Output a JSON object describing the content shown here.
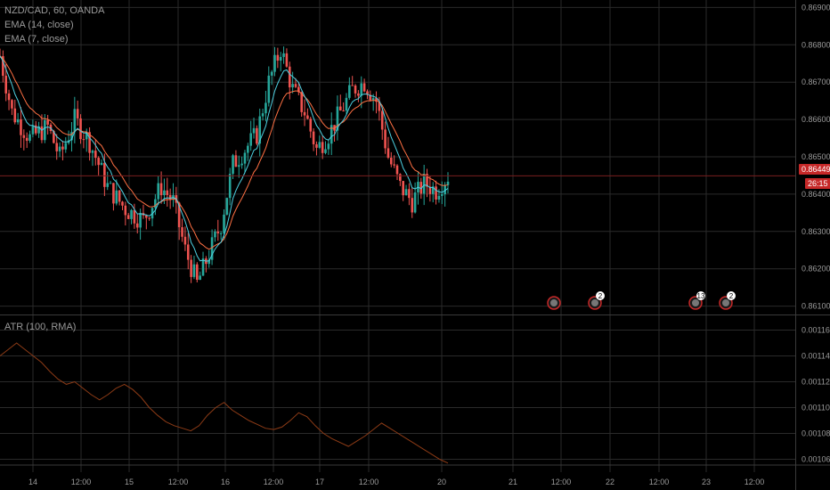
{
  "legend": {
    "symbol": "NZD/CAD, 60, OANDA",
    "ema14": "EMA (14, close)",
    "ema7": "EMA (7, close)",
    "atr": "ATR (100, RMA)"
  },
  "price_badge": "0.86449",
  "countdown_badge": "26:15",
  "events": [
    {
      "x_label": "21 12:00",
      "count": ""
    },
    {
      "x_label": "22",
      "count": "2"
    },
    {
      "x_label": "23",
      "count": "13"
    },
    {
      "x_label": "23",
      "count": "2"
    }
  ],
  "colors": {
    "up": "#26a69a",
    "down": "#ef5350",
    "ema14": "#ff7043",
    "ema7": "#4dd0e1",
    "atr": "#8d3b16",
    "grid": "#2a2a2a",
    "price_line": "#7a1e1e"
  },
  "chart_data": [
    {
      "type": "candlestick",
      "title": "NZD/CAD, 60, OANDA",
      "y_ticks": [
        "0.86900",
        "0.86800",
        "0.86700",
        "0.86600",
        "0.86500",
        "0.86400",
        "0.86300",
        "0.86200",
        "0.86100"
      ],
      "ylim": [
        0.8608,
        0.8692
      ],
      "x_tick_labels": [
        "14",
        "12:00",
        "15",
        "12:00",
        "16",
        "12:00",
        "17",
        "12:00",
        "20",
        "21",
        "12:00",
        "22",
        "12:00",
        "23",
        "12:00"
      ],
      "last_price": 0.86449,
      "series_names": [
        "EMA (14, close)",
        "EMA (7, close)"
      ]
    },
    {
      "type": "line",
      "title": "ATR (100, RMA)",
      "y_ticks": [
        "0.00116",
        "0.00114",
        "0.00112",
        "0.00110",
        "0.00108",
        "0.00106"
      ],
      "ylim": [
        0.00105,
        0.00117
      ],
      "values": [
        0.00114,
        0.001145,
        0.00115,
        0.001145,
        0.00114,
        0.001135,
        0.001128,
        0.001122,
        0.001118,
        0.00112,
        0.001115,
        0.00111,
        0.001106,
        0.00111,
        0.001115,
        0.001118,
        0.001114,
        0.001108,
        0.0011,
        0.001094,
        0.001089,
        0.001086,
        0.001084,
        0.001082,
        0.001086,
        0.001094,
        0.0011,
        0.001104,
        0.001098,
        0.001094,
        0.00109,
        0.001087,
        0.001084,
        0.001083,
        0.001085,
        0.00109,
        0.001096,
        0.001093,
        0.001086,
        0.00108,
        0.001076,
        0.001073,
        0.00107,
        0.001074,
        0.001078,
        0.001083,
        0.001088,
        0.001084,
        0.00108,
        0.001076,
        0.001072,
        0.001068,
        0.001064,
        0.00106,
        0.001057
      ]
    }
  ]
}
